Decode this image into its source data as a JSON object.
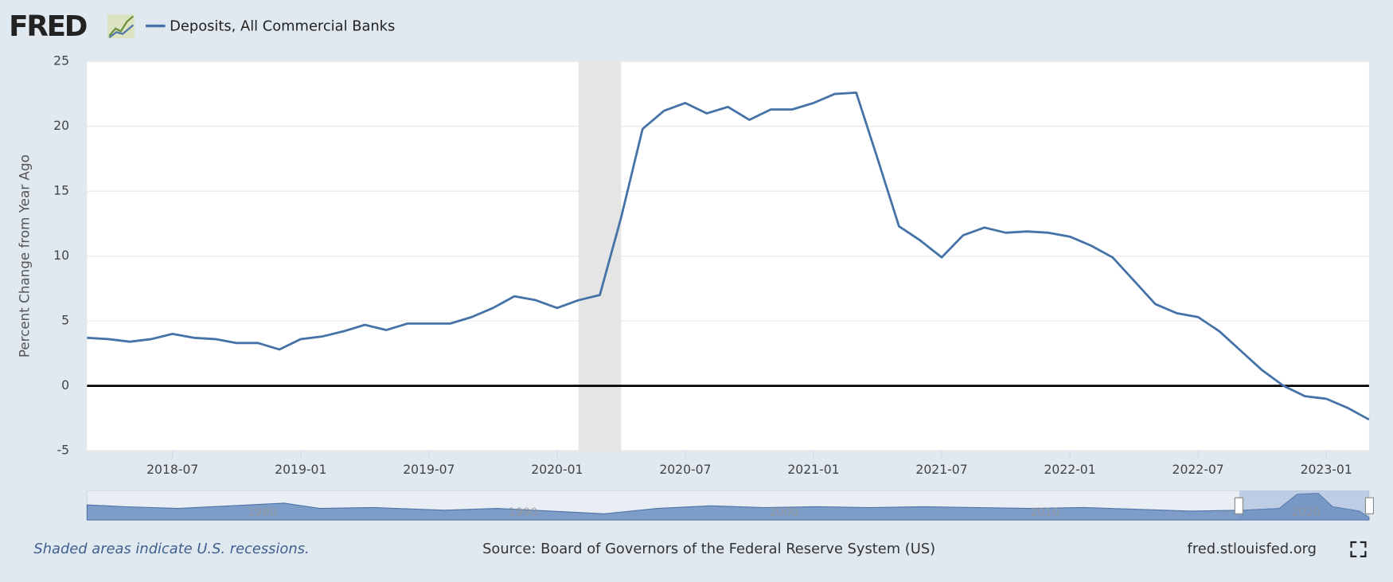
{
  "logo": "FRED",
  "chart_data": {
    "type": "line",
    "y_label": "Percent Change from Year Ago",
    "x": [
      "2018-03",
      "2018-04",
      "2018-05",
      "2018-06",
      "2018-07",
      "2018-08",
      "2018-09",
      "2018-10",
      "2018-11",
      "2018-12",
      "2019-01",
      "2019-02",
      "2019-03",
      "2019-04",
      "2019-05",
      "2019-06",
      "2019-07",
      "2019-08",
      "2019-09",
      "2019-10",
      "2019-11",
      "2019-12",
      "2020-01",
      "2020-02",
      "2020-03",
      "2020-04",
      "2020-05",
      "2020-06",
      "2020-07",
      "2020-08",
      "2020-09",
      "2020-10",
      "2020-11",
      "2020-12",
      "2021-01",
      "2021-02",
      "2021-03",
      "2021-04",
      "2021-05",
      "2021-06",
      "2021-07",
      "2021-08",
      "2021-09",
      "2021-10",
      "2021-11",
      "2021-12",
      "2022-01",
      "2022-02",
      "2022-03",
      "2022-04",
      "2022-05",
      "2022-06",
      "2022-07",
      "2022-08",
      "2022-09",
      "2022-10",
      "2022-11",
      "2022-12",
      "2023-01",
      "2023-02",
      "2023-03"
    ],
    "series": [
      {
        "name": "Deposits, All Commercial Banks",
        "color": "#4572a7",
        "values": [
          3.7,
          3.6,
          3.4,
          3.6,
          4.0,
          3.7,
          3.6,
          3.3,
          3.3,
          2.8,
          3.6,
          3.8,
          4.2,
          4.7,
          4.3,
          4.8,
          4.8,
          4.8,
          5.3,
          6.0,
          6.9,
          6.6,
          6.0,
          6.6,
          7.0,
          13.0,
          19.8,
          21.2,
          21.8,
          21.0,
          21.5,
          20.5,
          21.3,
          21.3,
          21.8,
          22.5,
          22.6,
          17.5,
          12.3,
          11.2,
          9.9,
          11.6,
          12.2,
          11.8,
          11.9,
          11.8,
          11.5,
          10.8,
          9.9,
          8.1,
          6.3,
          5.6,
          5.3,
          4.2,
          2.7,
          1.2,
          0.0,
          -0.8,
          -1.0,
          -1.7,
          -2.6
        ]
      }
    ],
    "xlim": [
      "2018-03",
      "2023-03"
    ],
    "xticks": [
      "2018-07",
      "2019-01",
      "2019-07",
      "2020-01",
      "2020-07",
      "2021-01",
      "2021-07",
      "2022-01",
      "2022-07",
      "2023-01"
    ],
    "ylim": [
      -5,
      25
    ],
    "yticks": [
      -5,
      0,
      5,
      10,
      15,
      20,
      25
    ],
    "grid": true,
    "recessions": [
      {
        "start": "2020-02",
        "end": "2020-04"
      }
    ],
    "navigator_labels": [
      "1980",
      "1990",
      "2000",
      "2010",
      "2020"
    ]
  },
  "footer": {
    "note": "Shaded areas indicate U.S. recessions.",
    "source": "Source: Board of Governors of the Federal Reserve System (US)",
    "site": "fred.stlouisfed.org"
  }
}
